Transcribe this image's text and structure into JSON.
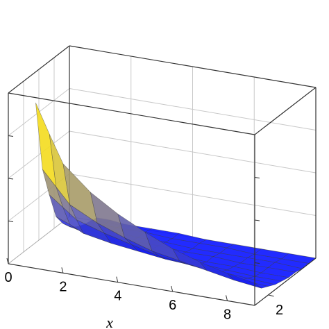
{
  "chart_data": {
    "type": "surface",
    "xlabel": "x",
    "ylabel": "",
    "zlabel": "",
    "x_ticks": [
      "0",
      "2",
      "4",
      "6",
      "8"
    ],
    "y_ticks": [
      "2"
    ],
    "x_range": [
      0,
      9
    ],
    "y_range": [
      0,
      9
    ],
    "grid": true,
    "box": true,
    "colors": {
      "surface": "#0a14ff",
      "peak": "#f4dc1e",
      "edge": "#3c3c3c"
    },
    "x": [
      1,
      1.5,
      2,
      3,
      4,
      5,
      6,
      7,
      8,
      9
    ],
    "y": [
      0,
      1,
      2,
      3,
      4,
      5,
      6,
      7,
      8,
      9
    ],
    "z": [
      [
        0.97,
        0.8,
        0.64,
        0.5,
        0.4,
        0.32,
        0.25,
        0.2,
        0.16,
        0.13
      ],
      [
        0.55,
        0.46,
        0.37,
        0.29,
        0.23,
        0.18,
        0.15,
        0.12,
        0.09,
        0.07
      ],
      [
        0.37,
        0.31,
        0.25,
        0.2,
        0.16,
        0.12,
        0.1,
        0.08,
        0.06,
        0.05
      ],
      [
        0.21,
        0.18,
        0.14,
        0.11,
        0.09,
        0.07,
        0.06,
        0.05,
        0.04,
        0.03
      ],
      [
        0.14,
        0.12,
        0.1,
        0.08,
        0.06,
        0.05,
        0.04,
        0.03,
        0.02,
        0.02
      ],
      [
        0.09,
        0.08,
        0.06,
        0.05,
        0.04,
        0.03,
        0.02,
        0.02,
        0.01,
        0.01
      ],
      [
        0.06,
        0.05,
        0.04,
        0.03,
        0.03,
        0.02,
        0.02,
        0.01,
        0.01,
        0.01
      ],
      [
        0.04,
        0.03,
        0.03,
        0.02,
        0.02,
        0.01,
        0.01,
        0.01,
        0.01,
        0.0
      ],
      [
        0.03,
        0.02,
        0.02,
        0.02,
        0.01,
        0.01,
        0.01,
        0.0,
        0.0,
        0.0
      ],
      [
        0.02,
        0.02,
        0.01,
        0.01,
        0.01,
        0.0,
        0.0,
        0.0,
        0.0,
        0.0
      ]
    ]
  }
}
